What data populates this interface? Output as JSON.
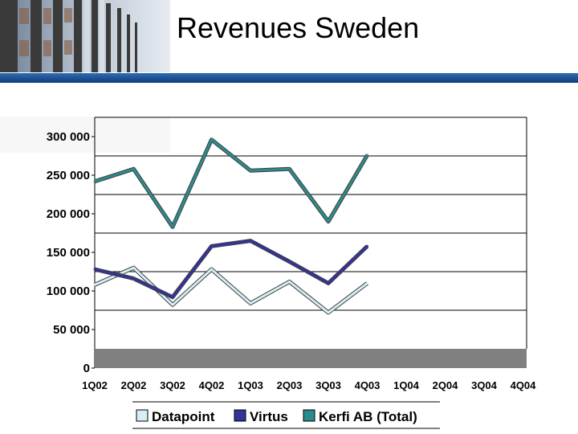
{
  "slide": {
    "title": "Revenues Sweden"
  },
  "colors": {
    "header_bar": "#0f3d7a",
    "header_bar_light": "#2f6bb3",
    "floor": "#808080",
    "grid": "#000000"
  },
  "chart_data": {
    "type": "line",
    "title": "",
    "xlabel": "",
    "ylabel": "",
    "categories": [
      "1Q02",
      "2Q02",
      "3Q02",
      "4Q02",
      "1Q03",
      "2Q03",
      "3Q03",
      "4Q03",
      "1Q04",
      "2Q04",
      "3Q04",
      "4Q04"
    ],
    "ylim": [
      0,
      300000
    ],
    "yticks": [
      0,
      50000,
      100000,
      150000,
      200000,
      250000,
      300000
    ],
    "ytick_labels": [
      "0",
      "50 000",
      "100 000",
      "150 000",
      "200 000",
      "250 000",
      "300 000"
    ],
    "grid": true,
    "legend_position": "bottom",
    "series": [
      {
        "name": "Datapoint",
        "color": "#d6eef5",
        "values": [
          108000,
          130000,
          82000,
          128000,
          84000,
          112000,
          72000,
          110000,
          null,
          null,
          null,
          null
        ]
      },
      {
        "name": "Virtus",
        "color": "#333399",
        "values": [
          128000,
          116000,
          92000,
          158000,
          165000,
          138000,
          110000,
          158000,
          null,
          null,
          null,
          null
        ]
      },
      {
        "name": "Kerfi AB (Total)",
        "color": "#2e8b8b",
        "values": [
          242000,
          258000,
          183000,
          296000,
          256000,
          258000,
          190000,
          276000,
          null,
          null,
          null,
          null
        ]
      }
    ]
  }
}
